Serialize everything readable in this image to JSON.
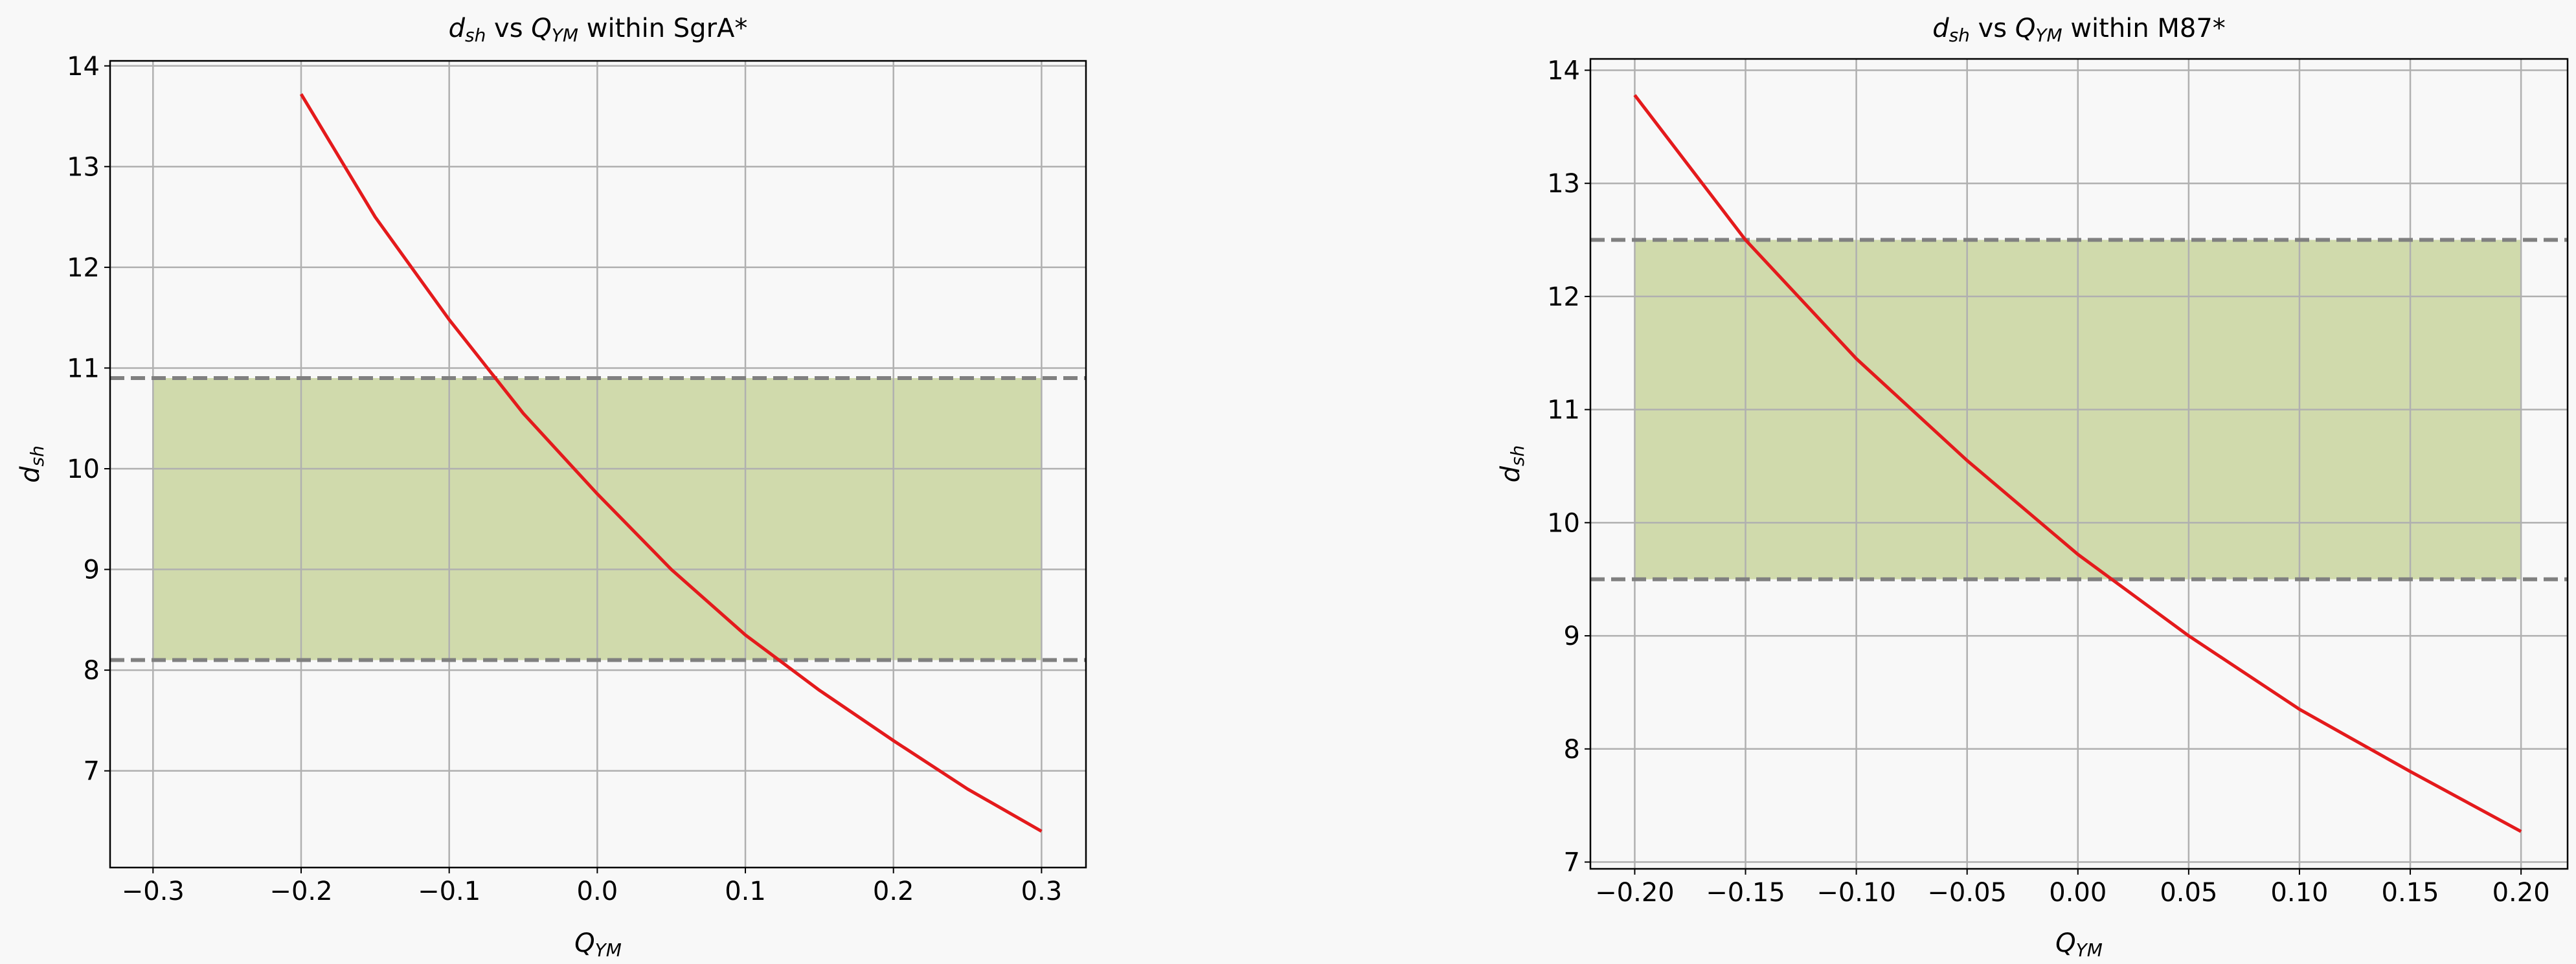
{
  "chart_data": [
    {
      "type": "line",
      "title": [
        {
          "text": "d",
          "style": "italic"
        },
        {
          "text": "sh",
          "style": "italic-sub"
        },
        {
          "text": " vs ",
          "style": "normal"
        },
        {
          "text": "Q",
          "style": "italic"
        },
        {
          "text": "YM",
          "style": "italic-sub"
        },
        {
          "text": " within SgrA*",
          "style": "normal"
        }
      ],
      "xlabel": [
        {
          "text": "Q",
          "style": "italic"
        },
        {
          "text": "YM",
          "style": "italic-sub"
        }
      ],
      "ylabel": [
        {
          "text": "d",
          "style": "italic"
        },
        {
          "text": "sh",
          "style": "italic-sub"
        }
      ],
      "x": [
        -0.2,
        -0.15,
        -0.1,
        -0.05,
        0,
        0.05,
        0.1,
        0.15,
        0.2,
        0.25,
        0.3
      ],
      "series": [
        {
          "color": "#e41a1c",
          "values": [
            13.72,
            12.5,
            11.48,
            10.55,
            9.75,
            9.0,
            8.35,
            7.8,
            7.3,
            6.82,
            6.4
          ]
        }
      ],
      "band": {
        "x": [
          -0.3,
          0.3
        ],
        "y": [
          8.1,
          10.9
        ],
        "color": "#d0daac"
      },
      "hlines": [
        8.1,
        10.9
      ],
      "hline_color": "#808080",
      "xlim": [
        -0.329,
        0.33
      ],
      "ylim": [
        6.04,
        14.05
      ],
      "xticks": [
        {
          "value": -0.3,
          "label": "−0.3"
        },
        {
          "value": -0.2,
          "label": "−0.2"
        },
        {
          "value": -0.1,
          "label": "−0.1"
        },
        {
          "value": 0,
          "label": "0.0"
        },
        0.1,
        0.2,
        0.3
      ],
      "yticks": [
        7,
        8,
        9,
        10,
        11,
        12,
        13,
        14
      ],
      "grid": true
    },
    {
      "type": "line",
      "title": [
        {
          "text": "d",
          "style": "italic"
        },
        {
          "text": "sh",
          "style": "italic-sub"
        },
        {
          "text": " vs ",
          "style": "normal"
        },
        {
          "text": "Q",
          "style": "italic"
        },
        {
          "text": "YM",
          "style": "italic-sub"
        },
        {
          "text": " within M87*",
          "style": "normal"
        }
      ],
      "xlabel": [
        {
          "text": "Q",
          "style": "italic"
        },
        {
          "text": "YM",
          "style": "italic-sub"
        }
      ],
      "ylabel": [
        {
          "text": "d",
          "style": "italic"
        },
        {
          "text": "sh",
          "style": "italic-sub"
        }
      ],
      "x": [
        -0.2,
        -0.15,
        -0.1,
        -0.05,
        0,
        0.05,
        0.1,
        0.15,
        0.2
      ],
      "series": [
        {
          "color": "#e41a1c",
          "values": [
            13.78,
            12.5,
            11.45,
            10.55,
            9.72,
            9.0,
            8.35,
            7.8,
            7.27
          ]
        }
      ],
      "band": {
        "x": [
          -0.2,
          0.2
        ],
        "y": [
          9.5,
          12.5
        ],
        "color": "#d0daac"
      },
      "hlines": [
        9.5,
        12.5
      ],
      "hline_color": "#808080",
      "xlim": [
        -0.22,
        0.221
      ],
      "ylim": [
        6.94,
        14.1
      ],
      "xticks": [
        {
          "value": -0.2,
          "label": "−0.20"
        },
        {
          "value": -0.15,
          "label": "−0.15"
        },
        {
          "value": -0.1,
          "label": "−0.10"
        },
        {
          "value": -0.05,
          "label": "−0.05"
        },
        {
          "value": 0,
          "label": "0.00"
        },
        0.05,
        {
          "value": 0.1,
          "label": "0.10"
        },
        0.15,
        {
          "value": 0.2,
          "label": "0.20"
        }
      ],
      "yticks": [
        7,
        8,
        9,
        10,
        11,
        12,
        13,
        14
      ],
      "grid": true
    }
  ]
}
